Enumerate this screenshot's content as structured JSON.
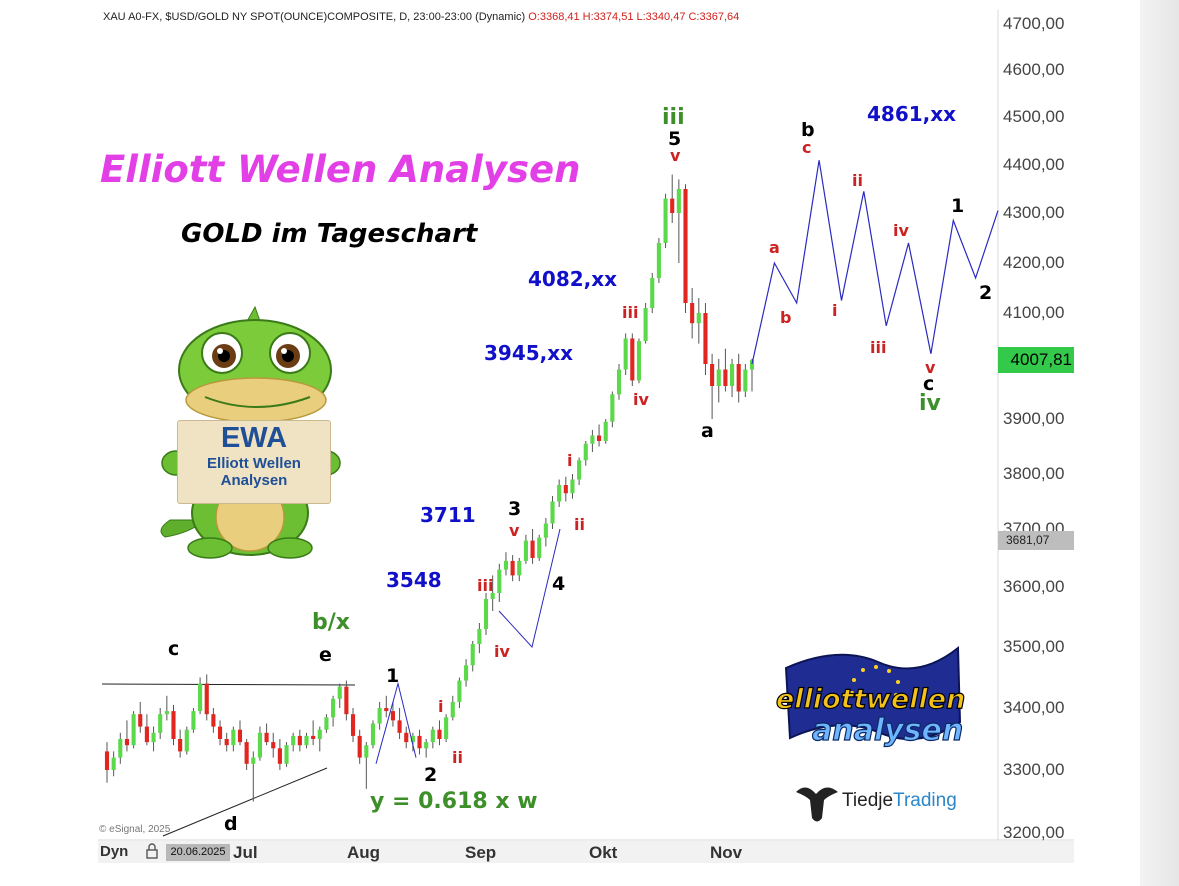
{
  "header": {
    "instrument": "XAU A0-FX, $USD/GOLD NY SPOT(OUNCE)COMPOSITE, D, 23:00-23:00 (Dynamic)",
    "ohlc": "O:3368,41 H:3374,51 L:3340,47 C:3367,64"
  },
  "titles": {
    "main": "Elliott Wellen Analysen",
    "sub": "GOLD im Tageschart"
  },
  "price_axis": [
    "4700,00",
    "4600,00",
    "4500,00",
    "4400,00",
    "4300,00",
    "4200,00",
    "4100,00",
    "3900,00",
    "3800,00",
    "3700,00",
    "3600,00",
    "3500,00",
    "3400,00",
    "3300,00",
    "3200,00"
  ],
  "last_price": "4007,81",
  "line_price": "3681,07",
  "time_axis": [
    "Dyn",
    "Jul",
    "Aug",
    "Sep",
    "Okt",
    "Nov"
  ],
  "cursor_date": "20.06.2025",
  "copyright": "© eSignal, 2025",
  "targets": {
    "t4861": "4861,xx",
    "t4082": "4082,xx",
    "t3945": "3945,xx",
    "t3711": "3711",
    "t3548": "3548"
  },
  "formula": "y = 0.618 x w",
  "waves": {
    "c_left": "c",
    "e": "e",
    "bx": "b/x",
    "d": "d",
    "w1": "1",
    "w2": "2",
    "i_a": "i",
    "ii_a": "ii",
    "iii_a": "iii",
    "iv_a": "iv",
    "w3": "3",
    "v3": "v",
    "w4": "4",
    "i_b": "i",
    "ii_b": "ii",
    "iii_b": "iii",
    "iv_b": "iv",
    "iii_g": "iii",
    "w5": "5",
    "v5": "v",
    "a_blk": "a",
    "a_red": "a",
    "b_red": "b",
    "b_blk": "b",
    "c_red": "c",
    "ii_c": "ii",
    "i_c": "i",
    "iii_c": "iii",
    "iv_c": "iv",
    "v_c": "v",
    "c_blk": "c",
    "iv_g": "iv",
    "one_r": "1",
    "two_r": "2"
  },
  "badge": {
    "big": "EWA",
    "line1": "Elliott Wellen",
    "line2": "Analysen"
  },
  "logo_text": "elliott wellen analysen",
  "tiedje": {
    "part1": "Tiedje",
    "part2": "Trading"
  },
  "chart_data": {
    "type": "candlestick",
    "title": "GOLD im Tageschart",
    "ylim": [
      3200,
      4700
    ],
    "x_ticks": [
      "Jul",
      "Aug",
      "Sep",
      "Okt",
      "Nov"
    ],
    "ohlc": [
      [
        3330,
        3345,
        3280,
        3300
      ],
      [
        3300,
        3330,
        3290,
        3320
      ],
      [
        3320,
        3360,
        3310,
        3350
      ],
      [
        3350,
        3380,
        3330,
        3340
      ],
      [
        3340,
        3395,
        3335,
        3390
      ],
      [
        3390,
        3410,
        3360,
        3370
      ],
      [
        3370,
        3390,
        3340,
        3345
      ],
      [
        3345,
        3370,
        3330,
        3360
      ],
      [
        3360,
        3400,
        3350,
        3390
      ],
      [
        3390,
        3420,
        3380,
        3395
      ],
      [
        3395,
        3405,
        3340,
        3350
      ],
      [
        3350,
        3365,
        3320,
        3330
      ],
      [
        3330,
        3370,
        3325,
        3365
      ],
      [
        3365,
        3400,
        3360,
        3395
      ],
      [
        3395,
        3450,
        3390,
        3440
      ],
      [
        3440,
        3455,
        3380,
        3390
      ],
      [
        3390,
        3400,
        3360,
        3370
      ],
      [
        3370,
        3380,
        3340,
        3350
      ],
      [
        3350,
        3360,
        3330,
        3340
      ],
      [
        3340,
        3370,
        3330,
        3365
      ],
      [
        3365,
        3380,
        3340,
        3345
      ],
      [
        3345,
        3350,
        3300,
        3310
      ],
      [
        3310,
        3330,
        3250,
        3320
      ],
      [
        3320,
        3370,
        3315,
        3360
      ],
      [
        3360,
        3375,
        3340,
        3345
      ],
      [
        3345,
        3360,
        3320,
        3335
      ],
      [
        3335,
        3350,
        3300,
        3310
      ],
      [
        3310,
        3345,
        3305,
        3340
      ],
      [
        3340,
        3360,
        3330,
        3355
      ],
      [
        3355,
        3365,
        3330,
        3340
      ],
      [
        3340,
        3360,
        3335,
        3355
      ],
      [
        3355,
        3380,
        3340,
        3350
      ],
      [
        3350,
        3370,
        3330,
        3365
      ],
      [
        3365,
        3390,
        3360,
        3385
      ],
      [
        3385,
        3420,
        3370,
        3415
      ],
      [
        3415,
        3440,
        3400,
        3435
      ],
      [
        3435,
        3445,
        3380,
        3390
      ],
      [
        3390,
        3400,
        3345,
        3355
      ],
      [
        3355,
        3365,
        3310,
        3320
      ],
      [
        3320,
        3345,
        3270,
        3340
      ],
      [
        3340,
        3380,
        3335,
        3375
      ],
      [
        3375,
        3410,
        3365,
        3400
      ],
      [
        3400,
        3420,
        3385,
        3395
      ],
      [
        3395,
        3410,
        3370,
        3380
      ],
      [
        3380,
        3400,
        3350,
        3360
      ],
      [
        3360,
        3370,
        3335,
        3345
      ],
      [
        3345,
        3360,
        3330,
        3355
      ],
      [
        3355,
        3365,
        3325,
        3335
      ],
      [
        3335,
        3350,
        3320,
        3345
      ],
      [
        3345,
        3370,
        3335,
        3365
      ],
      [
        3365,
        3380,
        3340,
        3350
      ],
      [
        3350,
        3390,
        3345,
        3385
      ],
      [
        3385,
        3420,
        3380,
        3410
      ],
      [
        3410,
        3450,
        3400,
        3445
      ],
      [
        3445,
        3480,
        3435,
        3470
      ],
      [
        3470,
        3510,
        3460,
        3505
      ],
      [
        3505,
        3540,
        3490,
        3530
      ],
      [
        3530,
        3590,
        3520,
        3580
      ],
      [
        3580,
        3620,
        3560,
        3590
      ],
      [
        3590,
        3640,
        3575,
        3630
      ],
      [
        3630,
        3660,
        3620,
        3645
      ],
      [
        3645,
        3655,
        3610,
        3620
      ],
      [
        3620,
        3650,
        3610,
        3645
      ],
      [
        3645,
        3690,
        3640,
        3680
      ],
      [
        3680,
        3700,
        3640,
        3650
      ],
      [
        3650,
        3690,
        3645,
        3685
      ],
      [
        3685,
        3720,
        3670,
        3710
      ],
      [
        3710,
        3760,
        3700,
        3750
      ],
      [
        3750,
        3790,
        3740,
        3780
      ],
      [
        3780,
        3795,
        3750,
        3765
      ],
      [
        3765,
        3800,
        3755,
        3790
      ],
      [
        3790,
        3830,
        3780,
        3825
      ],
      [
        3825,
        3860,
        3815,
        3855
      ],
      [
        3855,
        3880,
        3840,
        3870
      ],
      [
        3870,
        3890,
        3850,
        3860
      ],
      [
        3860,
        3900,
        3855,
        3895
      ],
      [
        3895,
        3950,
        3885,
        3945
      ],
      [
        3945,
        4000,
        3935,
        3990
      ],
      [
        3990,
        4060,
        3980,
        4050
      ],
      [
        4050,
        4060,
        3960,
        3970
      ],
      [
        3970,
        4050,
        3965,
        4045
      ],
      [
        4045,
        4120,
        4040,
        4110
      ],
      [
        4110,
        4180,
        4100,
        4170
      ],
      [
        4170,
        4250,
        4160,
        4240
      ],
      [
        4240,
        4340,
        4230,
        4330
      ],
      [
        4330,
        4380,
        4280,
        4300
      ],
      [
        4300,
        4370,
        4200,
        4350
      ],
      [
        4350,
        4360,
        4100,
        4120
      ],
      [
        4120,
        4150,
        4050,
        4080
      ],
      [
        4080,
        4130,
        4040,
        4100
      ],
      [
        4100,
        4120,
        3980,
        4000
      ],
      [
        4000,
        4020,
        3900,
        3960
      ],
      [
        3960,
        4010,
        3930,
        3990
      ],
      [
        3990,
        4030,
        3950,
        3960
      ],
      [
        3960,
        4010,
        3940,
        4000
      ],
      [
        4000,
        4020,
        3930,
        3950
      ],
      [
        3950,
        4000,
        3940,
        3990
      ],
      [
        3990,
        4010,
        3950,
        4008
      ]
    ],
    "projection_path": [
      4000,
      4200,
      4120,
      4410,
      4125,
      4345,
      4075,
      4240,
      4020,
      4285,
      4170,
      4305
    ],
    "annotations": [
      "1",
      "2",
      "3",
      "4",
      "5",
      "a",
      "b",
      "c",
      "d",
      "e",
      "b/x",
      "i",
      "ii",
      "iii",
      "iv",
      "v"
    ]
  }
}
